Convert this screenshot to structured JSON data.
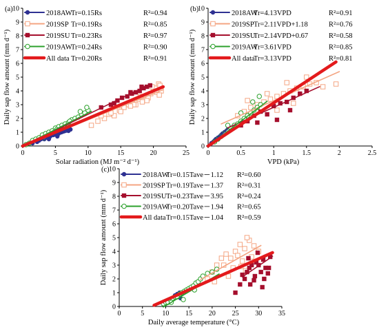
{
  "colors": {
    "AW2018": "#2e3192",
    "SP2019": "#f4a582",
    "SU2019": "#a50f2d",
    "AW2019": "#2ca02c",
    "all": "#e31a1c"
  },
  "chart_data": [
    {
      "type": "scatter",
      "panel_label": "(a)",
      "xlabel": "Solar radiation (MJ m⁻² d⁻¹)",
      "ylabel": "Daily sap flow amount (mm d⁻¹)",
      "xlim": [
        0,
        25
      ],
      "ylim": [
        0,
        10
      ],
      "xticks": [
        "0",
        "5",
        "10",
        "15",
        "20",
        "25"
      ],
      "yticks": [
        "0",
        "1",
        "2",
        "3",
        "4",
        "5",
        "6",
        "7",
        "8",
        "9",
        "10"
      ],
      "series": [
        {
          "name": "2018AW",
          "equation": "Tr=0.15Rs",
          "r2": "R²=0.94",
          "marker": "circle-filled",
          "color": "#2e3192",
          "x": [
            1.5,
            2.2,
            2.8,
            3.3,
            3.8,
            4.2,
            4.7,
            5.1,
            5.5,
            5.9,
            6.3,
            6.7,
            7.0,
            7.3,
            4.0,
            5.3,
            6.0,
            2.5
          ],
          "y": [
            0.2,
            0.3,
            0.5,
            0.5,
            0.6,
            0.7,
            0.8,
            0.9,
            0.9,
            1.0,
            1.1,
            1.2,
            1.1,
            1.2,
            0.5,
            0.7,
            1.3,
            0.4
          ],
          "fit_x": [
            0,
            7.5
          ]
        },
        {
          "name": "2019SP",
          "equation": "Tr=0.19Rs",
          "r2": "R²=0.85",
          "marker": "square-open",
          "color": "#f4a582",
          "x": [
            10.5,
            11.5,
            12.5,
            13.2,
            14.0,
            14.8,
            15.5,
            16.2,
            16.8,
            17.3,
            17.8,
            18.3,
            18.8,
            19.2,
            19.6,
            20.0,
            20.4,
            20.8,
            21.2,
            15.0,
            17.0,
            19.0,
            20.5,
            21.0,
            18.0,
            16.5,
            13.5,
            12.0,
            19.8,
            20.9
          ],
          "y": [
            1.5,
            1.8,
            2.0,
            2.3,
            2.2,
            2.6,
            2.8,
            3.0,
            3.2,
            3.0,
            3.4,
            3.2,
            3.6,
            3.5,
            3.8,
            4.0,
            4.2,
            4.5,
            4.0,
            2.5,
            3.0,
            3.3,
            3.9,
            4.4,
            3.6,
            2.9,
            2.4,
            2.2,
            4.3,
            3.7
          ],
          "fit_x": [
            0,
            21.5
          ]
        },
        {
          "name": "2019SU",
          "equation": "Tr=0.23Rs",
          "r2": "R²=0.97",
          "marker": "square-filled",
          "color": "#a50f2d",
          "x": [
            12.0,
            13.5,
            14.5,
            15.2,
            16.0,
            16.7,
            17.3,
            17.9,
            18.5,
            19.0,
            19.5,
            14.0,
            16.5,
            18.2
          ],
          "y": [
            2.8,
            3.0,
            3.3,
            3.5,
            3.6,
            3.8,
            3.9,
            4.0,
            4.2,
            4.3,
            4.4,
            3.1,
            3.9,
            4.3
          ],
          "fit_x": [
            0,
            19.5
          ]
        },
        {
          "name": "2019AW",
          "equation": "Tr=0.24Rs",
          "r2": "R²=0.90",
          "marker": "circle-open",
          "color": "#2ca02c",
          "x": [
            0.5,
            1.0,
            1.5,
            2.0,
            2.5,
            3.0,
            3.5,
            4.0,
            4.5,
            5.0,
            5.5,
            6.0,
            6.5,
            7.0,
            7.5,
            8.0,
            8.5,
            9.0,
            9.5,
            10.0,
            3.2,
            5.2,
            7.2,
            8.8,
            9.8
          ],
          "y": [
            0.1,
            0.2,
            0.4,
            0.5,
            0.6,
            0.8,
            0.9,
            1.0,
            1.1,
            1.3,
            1.4,
            1.5,
            1.6,
            1.7,
            1.9,
            2.0,
            2.1,
            2.3,
            2.4,
            2.6,
            0.6,
            1.2,
            1.8,
            2.5,
            2.8
          ],
          "fit_x": [
            0,
            10.5
          ]
        },
        {
          "name": "All data",
          "equation": "Tr=0.20Rs",
          "r2": "R²=0.91",
          "marker": "line-thick",
          "color": "#e31a1c",
          "x": [],
          "y": [],
          "fit_x": [
            0,
            21.5
          ]
        }
      ],
      "fits": [
        {
          "series": "2018AW",
          "slope": 0.15,
          "intercept": 0
        },
        {
          "series": "2019SP",
          "slope": 0.19,
          "intercept": 0
        },
        {
          "series": "2019SU",
          "slope": 0.23,
          "intercept": 0
        },
        {
          "series": "2019AW",
          "slope": 0.24,
          "intercept": 0
        },
        {
          "series": "All data",
          "slope": 0.2,
          "intercept": 0
        }
      ]
    },
    {
      "type": "scatter",
      "panel_label": "(b)",
      "xlabel": "VPD (kPa)",
      "ylabel": "Daily sap flow amount (mm d⁻¹)",
      "xlim": [
        0,
        2.5
      ],
      "ylim": [
        0,
        10
      ],
      "xticks": [
        "0",
        "0.5",
        "1",
        "1.5",
        "2",
        "2.5"
      ],
      "yticks": [
        "0",
        "1",
        "2",
        "3",
        "4",
        "5",
        "6",
        "7",
        "8",
        "9",
        "10"
      ],
      "series": [
        {
          "name": "2018AW",
          "equation": "Tr=4.13VPD",
          "r2": "R²=0.91",
          "marker": "circle-filled",
          "color": "#2e3192",
          "x": [
            0.05,
            0.08,
            0.1,
            0.12,
            0.15,
            0.18,
            0.2,
            0.22,
            0.25,
            0.28,
            0.3,
            0.14,
            0.24
          ],
          "y": [
            0.2,
            0.3,
            0.4,
            0.5,
            0.6,
            0.7,
            0.8,
            0.9,
            1.0,
            1.1,
            1.2,
            0.5,
            0.9
          ],
          "fit_x": [
            0,
            0.3
          ]
        },
        {
          "name": "2019SP",
          "equation": "Tr=2.11VPD+1.18",
          "r2": "R²=0.76",
          "marker": "square-open",
          "color": "#f4a582",
          "x": [
            0.45,
            0.55,
            0.65,
            0.75,
            0.85,
            0.95,
            1.05,
            1.15,
            1.25,
            1.35,
            1.45,
            1.55,
            1.65,
            1.75,
            1.95,
            0.6,
            0.9,
            1.2,
            1.5,
            1.05,
            1.3
          ],
          "y": [
            2.2,
            2.5,
            2.8,
            3.0,
            3.2,
            3.4,
            3.6,
            3.8,
            4.0,
            4.2,
            4.3,
            4.5,
            4.6,
            4.3,
            4.5,
            3.3,
            3.8,
            4.6,
            5.0,
            2.6,
            3.1
          ],
          "fit_x": [
            0.2,
            2.0
          ]
        },
        {
          "name": "2019SU",
          "equation": "Tr=2.14VPD+0.67",
          "r2": "R²=0.58",
          "marker": "square-filled",
          "color": "#a50f2d",
          "x": [
            0.5,
            0.6,
            0.7,
            0.8,
            0.9,
            1.0,
            1.1,
            1.2,
            1.3,
            1.4,
            1.5,
            0.75,
            1.05,
            1.25
          ],
          "y": [
            1.5,
            1.8,
            2.2,
            2.5,
            2.3,
            2.9,
            3.1,
            3.2,
            3.5,
            3.8,
            4.0,
            1.7,
            1.9,
            2.6
          ],
          "fit_x": [
            0.3,
            1.7
          ]
        },
        {
          "name": "2019AW",
          "equation": "Tr=3.61VPD",
          "r2": "R²=0.85",
          "marker": "circle-open",
          "color": "#2ca02c",
          "x": [
            0.1,
            0.15,
            0.2,
            0.25,
            0.3,
            0.35,
            0.4,
            0.45,
            0.5,
            0.55,
            0.6,
            0.65,
            0.7,
            0.75,
            0.8,
            0.3,
            0.5,
            0.68,
            0.78
          ],
          "y": [
            0.3,
            0.5,
            0.7,
            0.9,
            1.1,
            1.3,
            1.5,
            1.6,
            1.8,
            2.0,
            2.2,
            2.4,
            2.6,
            2.8,
            3.0,
            1.5,
            2.4,
            3.2,
            3.6
          ],
          "fit_x": [
            0,
            0.9
          ]
        },
        {
          "name": "All data",
          "equation": "Tr=3.13VPD",
          "r2": "R²=0.81",
          "marker": "line-thick",
          "color": "#e31a1c",
          "x": [],
          "y": [],
          "fit_x": [
            0,
            1.95
          ]
        }
      ],
      "fits": [
        {
          "series": "2018AW",
          "slope": 4.13,
          "intercept": 0
        },
        {
          "series": "2019SP",
          "slope": 2.11,
          "intercept": 1.18
        },
        {
          "series": "2019SU",
          "slope": 2.14,
          "intercept": 0.67
        },
        {
          "series": "2019AW",
          "slope": 3.61,
          "intercept": 0
        },
        {
          "series": "All data",
          "slope": 3.13,
          "intercept": 0
        }
      ]
    },
    {
      "type": "scatter",
      "panel_label": "(c)",
      "xlabel": "Daily average temperature (°C)",
      "ylabel": "Daily sap flow amount (mm d⁻¹)",
      "xlim": [
        0,
        35
      ],
      "ylim": [
        0,
        10
      ],
      "xticks": [
        "0",
        "5",
        "10",
        "15",
        "20",
        "25",
        "30",
        "35"
      ],
      "yticks": [
        "0",
        "1",
        "2",
        "3",
        "4",
        "5",
        "6",
        "7",
        "8",
        "9",
        "10"
      ],
      "series": [
        {
          "name": "2018AW",
          "equation": "Tr=0.15Tave－1.12",
          "r2": "R²=0.60",
          "marker": "circle-filled",
          "color": "#2e3192",
          "x": [
            10.5,
            11.0,
            11.5,
            12.0,
            12.5,
            13.0,
            13.5,
            14.0,
            12.2,
            13.2
          ],
          "y": [
            0.4,
            0.5,
            0.6,
            0.8,
            0.9,
            1.0,
            0.9,
            1.1,
            0.7,
            0.6
          ],
          "fit_x": [
            8.5,
            14.5
          ]
        },
        {
          "name": "2019SP",
          "equation": "Tr=0.19Tave－1.37",
          "r2": "R²=0.31",
          "marker": "square-open",
          "color": "#f4a582",
          "x": [
            19.0,
            20.0,
            21.0,
            22.0,
            23.0,
            24.0,
            25.0,
            26.0,
            27.0,
            28.0,
            29.0,
            30.0,
            22.5,
            24.5,
            26.5,
            28.5,
            23.5,
            25.5,
            27.5,
            20.5,
            26.2,
            27.2
          ],
          "y": [
            2.0,
            2.5,
            3.0,
            3.5,
            3.8,
            3.5,
            4.0,
            4.5,
            4.2,
            4.8,
            4.4,
            4.0,
            3.0,
            2.8,
            3.3,
            3.6,
            2.2,
            3.7,
            5.0,
            1.8,
            2.9,
            2.6
          ],
          "fit_x": [
            17.5,
            30.5
          ]
        },
        {
          "name": "2019SU",
          "equation": "Tr=0.23Tave－3.95",
          "r2": "R²=0.24",
          "marker": "square-filled",
          "color": "#a50f2d",
          "x": [
            25.0,
            26.0,
            27.0,
            27.5,
            28.0,
            28.5,
            29.0,
            29.5,
            30.0,
            30.5,
            31.0,
            31.5,
            32.0,
            32.5,
            26.5,
            28.2,
            29.8,
            31.2,
            27.8,
            30.8,
            32.2,
            29.2
          ],
          "y": [
            1.0,
            1.6,
            2.0,
            2.5,
            2.8,
            3.0,
            1.9,
            3.2,
            3.0,
            2.5,
            3.4,
            2.8,
            2.4,
            3.6,
            2.3,
            1.6,
            3.9,
            2.0,
            3.5,
            1.4,
            2.8,
            2.2
          ],
          "fit_x": [
            26.5,
            33.0
          ]
        },
        {
          "name": "2019AW",
          "equation": "Tr=0.20Tave－1.94",
          "r2": "R²=0.65",
          "marker": "circle-open",
          "color": "#2ca02c",
          "x": [
            9.5,
            10.0,
            10.5,
            11.0,
            11.5,
            12.0,
            12.5,
            13.0,
            13.5,
            14.0,
            14.5,
            15.0,
            15.5,
            16.0,
            16.5,
            17.0,
            17.5,
            18.0,
            19.0,
            20.0,
            21.0,
            11.2,
            13.8,
            16.2
          ],
          "y": [
            0.2,
            0.3,
            0.3,
            0.5,
            0.6,
            0.7,
            0.7,
            0.9,
            1.0,
            1.1,
            1.2,
            1.3,
            1.4,
            1.5,
            1.7,
            1.8,
            2.0,
            2.2,
            2.4,
            2.5,
            2.7,
            0.3,
            0.5,
            1.2
          ],
          "fit_x": [
            9.5,
            21.5
          ]
        },
        {
          "name": "All data",
          "equation": "Tr=0.15Tave－1.04",
          "r2": "R²=0.59",
          "marker": "line-thick",
          "color": "#e31a1c",
          "x": [],
          "y": [],
          "fit_x": [
            7.5,
            33.0
          ]
        }
      ],
      "fits": [
        {
          "series": "2018AW",
          "slope": 0.15,
          "intercept": -1.12
        },
        {
          "series": "2019SP",
          "slope": 0.19,
          "intercept": -1.37
        },
        {
          "series": "2019SU",
          "slope": 0.23,
          "intercept": -3.95
        },
        {
          "series": "2019AW",
          "slope": 0.2,
          "intercept": -1.94
        },
        {
          "series": "All data",
          "slope": 0.15,
          "intercept": -1.04
        }
      ]
    }
  ]
}
